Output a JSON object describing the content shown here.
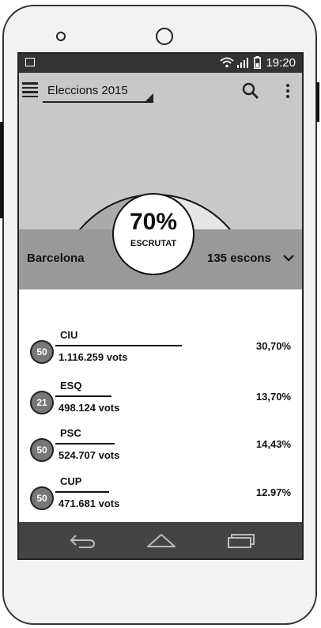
{
  "status_bar": {
    "time": "19:20",
    "icons": [
      "image-icon",
      "wifi-icon",
      "signal-icon",
      "battery-icon"
    ]
  },
  "toolbar": {
    "title": "Eleccions 2015",
    "icons": [
      "menu-icon",
      "search-icon",
      "more-vert-icon"
    ]
  },
  "scrutiny": {
    "percent": "70%",
    "label": "ESCRUTAT",
    "fraction": 0.7
  },
  "region": {
    "name": "Barcelona",
    "seats": "135 escons"
  },
  "parties": [
    {
      "name": "CIU",
      "seats": "50",
      "votes": "1.116.259 vots",
      "percent": "30,70%",
      "share": 0.307
    },
    {
      "name": "ESQ",
      "seats": "21",
      "votes": "498.124 vots",
      "percent": "13,70%",
      "share": 0.137
    },
    {
      "name": "PSC",
      "seats": "50",
      "votes": "524.707 vots",
      "percent": "14,43%",
      "share": 0.1443
    },
    {
      "name": "CUP",
      "seats": "50",
      "votes": "471.681 vots",
      "percent": "12.97%",
      "share": 0.1297
    }
  ],
  "colors": {
    "status_bar": "#333333",
    "toolbar": "#c8c8c8",
    "region_bar": "#999999",
    "nav_bar": "#444444",
    "chart_dark": "#aaaaaa",
    "chart_light": "#e6e6e6"
  },
  "nav_icons": [
    "back-icon",
    "home-icon",
    "recents-icon"
  ]
}
